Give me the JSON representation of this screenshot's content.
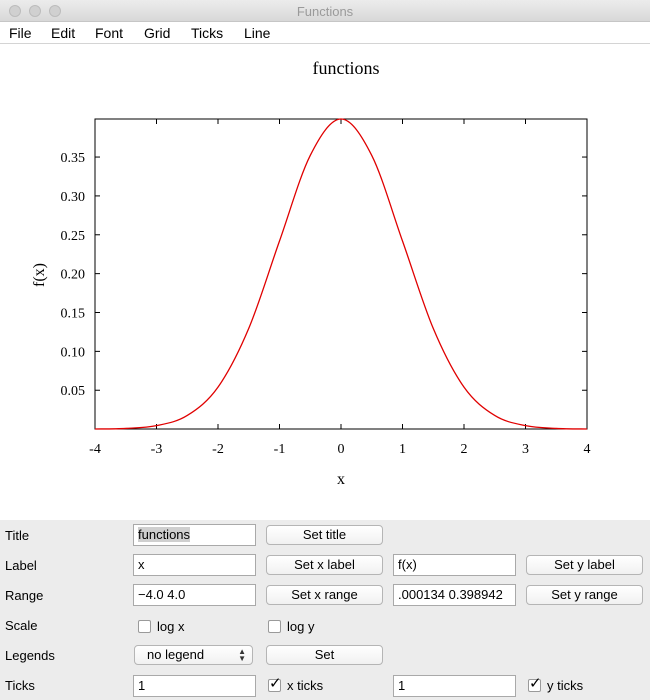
{
  "window": {
    "title": "Functions"
  },
  "menu": [
    "File",
    "Edit",
    "Font",
    "Grid",
    "Ticks",
    "Line"
  ],
  "colors": {
    "curve": "#e00000",
    "controls_bg": "#ececec"
  },
  "chart_data": {
    "type": "line",
    "title": "functions",
    "xlabel": "x",
    "ylabel": "f(x)",
    "xlim": [
      -4,
      4
    ],
    "ylim": [
      0.000134,
      0.398942
    ],
    "x_ticks": [
      -4,
      -3,
      -2,
      -1,
      0,
      1,
      2,
      3,
      4
    ],
    "y_ticks": [
      0.05,
      0.1,
      0.15,
      0.2,
      0.25,
      0.3,
      0.35
    ],
    "y_tick_labels": [
      "0.05",
      "0.10",
      "0.15",
      "0.20",
      "0.25",
      "0.30",
      "0.35"
    ],
    "grid": false,
    "legend": "none",
    "series": [
      {
        "color": "#e00000",
        "x": [
          -4,
          -3.5,
          -3,
          -2.5,
          -2,
          -1.5,
          -1,
          -0.5,
          0,
          0.5,
          1,
          1.5,
          2,
          2.5,
          3,
          3.5,
          4
        ],
        "y": [
          0.000134,
          0.000873,
          0.004432,
          0.017528,
          0.053991,
          0.129518,
          0.241971,
          0.352065,
          0.398942,
          0.352065,
          0.241971,
          0.129518,
          0.053991,
          0.017528,
          0.004432,
          0.000873,
          0.000134
        ]
      }
    ]
  },
  "controls": {
    "title": {
      "label": "Title",
      "value": "functions",
      "button": "Set title"
    },
    "label": {
      "label": "Label",
      "x_value": "x",
      "x_button": "Set x label",
      "y_value": "f(x)",
      "y_button": "Set y label"
    },
    "range": {
      "label": "Range",
      "x_value": "−4.0 4.0",
      "x_button": "Set x range",
      "y_value": ".000134 0.398942",
      "y_button": "Set y range"
    },
    "scale": {
      "label": "Scale",
      "logx_label": "log x",
      "logx_checked": false,
      "logy_label": "log y",
      "logy_checked": false
    },
    "legends": {
      "label": "Legends",
      "selected": "no legend",
      "button": "Set"
    },
    "ticks": {
      "label": "Ticks",
      "x_value": "1",
      "x_label": "x ticks",
      "x_checked": true,
      "y_value": "1",
      "y_label": "y ticks",
      "y_checked": true
    }
  }
}
